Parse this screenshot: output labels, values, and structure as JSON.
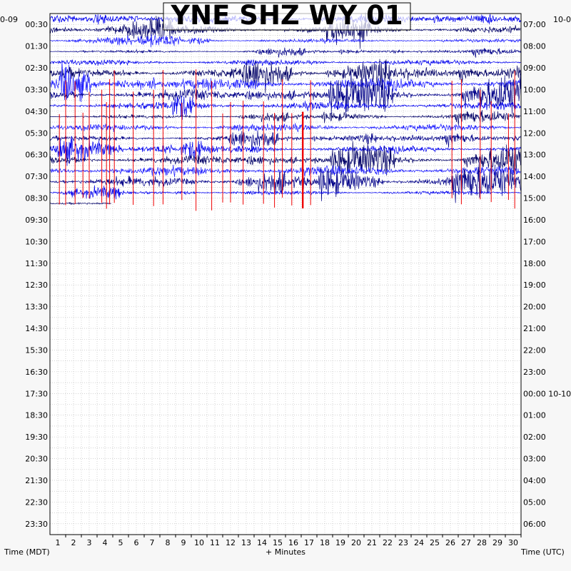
{
  "chart_data": {
    "type": "line",
    "title": "YNE SHZ WY 01",
    "left_date_label": "0-09",
    "right_date_label": "10-0",
    "xlabel": "+ Minutes",
    "left_axis_label": "Time (MDT)",
    "right_axis_label": "Time (UTC)",
    "x_ticks": [
      "1",
      "2",
      "3",
      "4",
      "5",
      "6",
      "7",
      "8",
      "9",
      "10",
      "11",
      "12",
      "13",
      "14",
      "15",
      "16",
      "17",
      "18",
      "19",
      "20",
      "21",
      "22",
      "23",
      "24",
      "25",
      "26",
      "27",
      "28",
      "29",
      "30"
    ],
    "xlim": [
      0,
      30
    ],
    "left_ticks": [
      "00:30",
      "01:30",
      "02:30",
      "03:30",
      "04:30",
      "05:30",
      "06:30",
      "07:30",
      "08:30",
      "09:30",
      "10:30",
      "11:30",
      "12:30",
      "13:30",
      "14:30",
      "15:30",
      "16:30",
      "17:30",
      "18:30",
      "19:30",
      "20:30",
      "21:30",
      "22:30",
      "23:30"
    ],
    "right_ticks": [
      "07:00",
      "08:00",
      "09:00",
      "10:00",
      "11:00",
      "12:00",
      "13:00",
      "14:00",
      "15:00",
      "16:00",
      "17:00",
      "18:00",
      "19:00",
      "20:00",
      "21:00",
      "22:00",
      "23:00",
      "00:00 10-10",
      "01:00",
      "02:00",
      "03:00",
      "04:00",
      "05:00",
      "06:00"
    ],
    "grid": true,
    "trace_colors": [
      "#0000ee",
      "#000066",
      "#1a1aff",
      "#000088"
    ],
    "event_color": "#ee0000",
    "trace_rows_recorded": 18,
    "trace_rows_total": 48,
    "row_minutes": 30
  }
}
